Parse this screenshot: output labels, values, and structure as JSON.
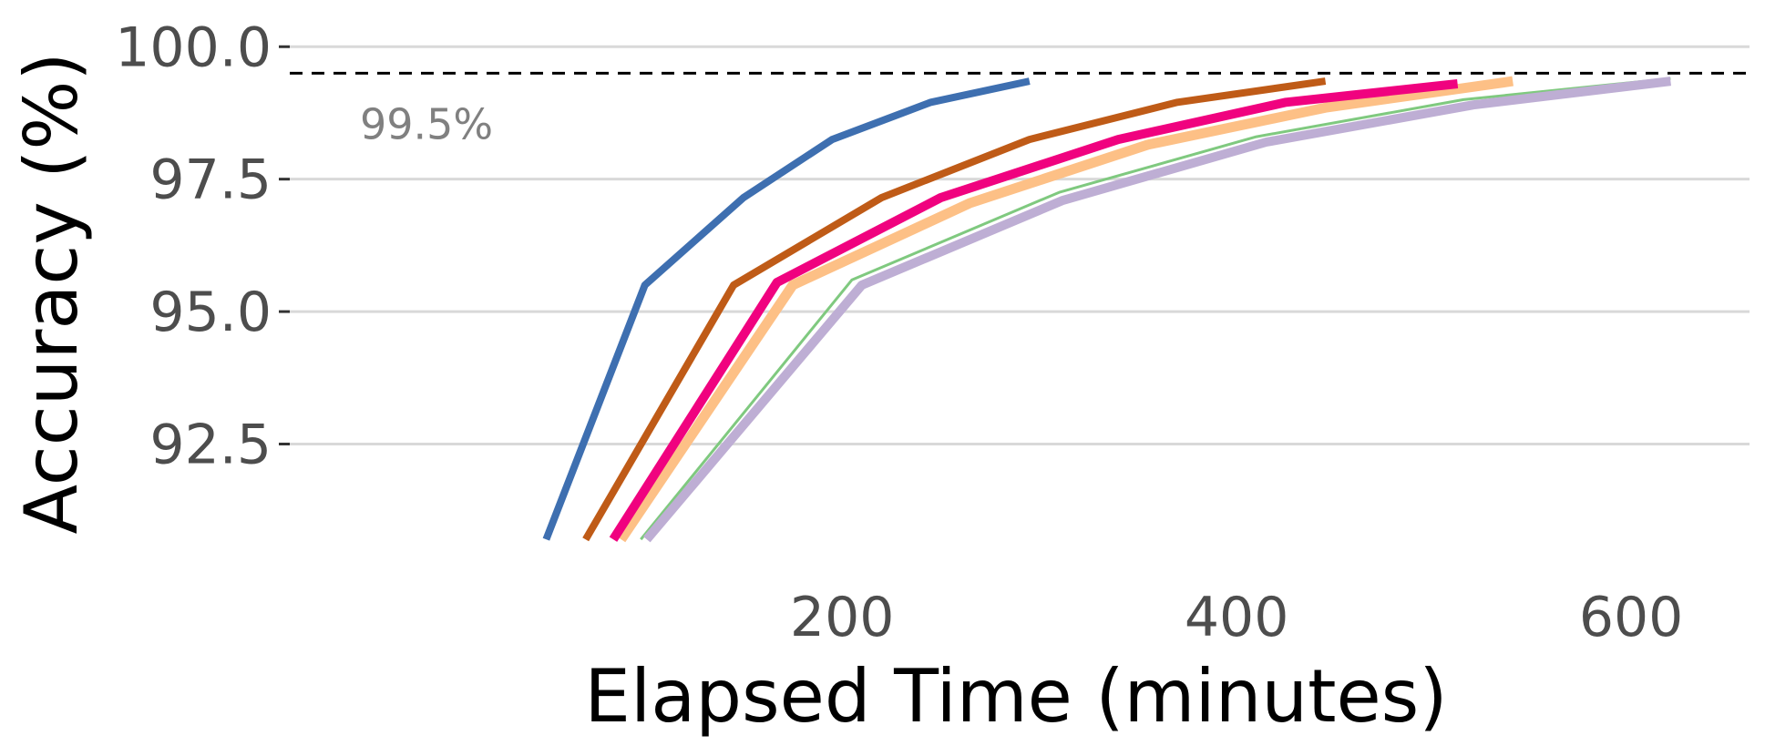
{
  "chart_data": {
    "type": "line",
    "title": "",
    "xlabel": "Elapsed Time (minutes)",
    "ylabel": "Accuracy (%)",
    "xlim": [
      -80,
      660
    ],
    "ylim": [
      90.6,
      100.4
    ],
    "x_ticks": [
      200,
      400,
      600
    ],
    "x_tick_labels": [
      "200",
      "400",
      "600"
    ],
    "y_ticks": [
      92.5,
      95.0,
      97.5,
      100.0
    ],
    "y_tick_labels": [
      "92.5",
      "95.0",
      "97.5",
      "100.0"
    ],
    "grid": "horizontal major lines only",
    "legend": "none",
    "reference_line": {
      "y": 99.5,
      "style": "dashed",
      "color": "#000000",
      "label": "99.5%"
    },
    "series": [
      {
        "color": "#3e6fb0",
        "width": 8,
        "x": [
          50,
          100,
          150,
          195,
          245,
          295
        ],
        "y": [
          90.7,
          95.5,
          97.15,
          98.25,
          98.95,
          99.35
        ]
      },
      {
        "color": "#bf5b17",
        "width": 8,
        "x": [
          70,
          145,
          220,
          295,
          370,
          445
        ],
        "y": [
          90.7,
          95.5,
          97.15,
          98.25,
          98.95,
          99.35
        ]
      },
      {
        "color": "#fdc086",
        "width": 11,
        "x": [
          88,
          175,
          265,
          355,
          445,
          540
        ],
        "y": [
          90.7,
          95.5,
          97.05,
          98.15,
          98.85,
          99.35
        ]
      },
      {
        "color": "#f0027f",
        "width": 10,
        "x": [
          84,
          167,
          250,
          340,
          425,
          512
        ],
        "y": [
          90.7,
          95.55,
          97.15,
          98.25,
          98.95,
          99.3
        ]
      },
      {
        "color": "#7fc97f",
        "width": 3,
        "x": [
          98,
          205,
          310,
          410,
          515,
          620
        ],
        "y": [
          90.7,
          95.6,
          97.25,
          98.3,
          99.0,
          99.4
        ]
      },
      {
        "color": "#beaed4",
        "width": 10,
        "x": [
          101,
          210,
          312,
          415,
          520,
          620
        ],
        "y": [
          90.7,
          95.5,
          97.1,
          98.2,
          98.9,
          99.35
        ]
      }
    ]
  }
}
